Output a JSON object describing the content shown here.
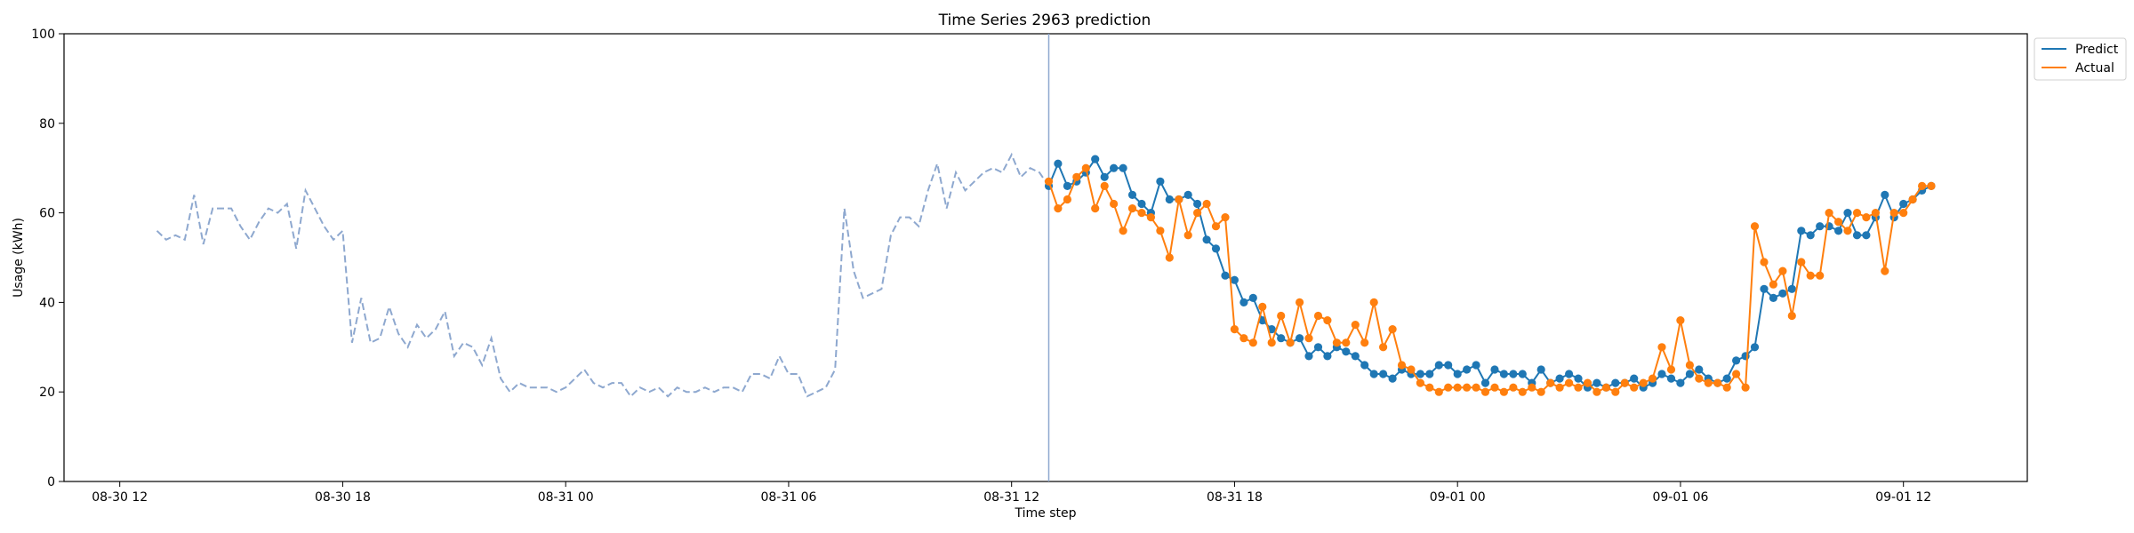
{
  "chart_data": {
    "type": "line",
    "title": "Time Series 2963 prediction",
    "xlabel": "Time step",
    "ylabel": "Usage (kWh)",
    "ylim": [
      0,
      100
    ],
    "yticks": [
      0,
      20,
      40,
      60,
      80,
      100
    ],
    "xlim": [
      "08-30 10:30",
      "09-01 15:20"
    ],
    "xtick_labels": [
      "08-30 12",
      "08-30 18",
      "08-31 00",
      "08-31 06",
      "08-31 12",
      "08-31 18",
      "09-01 00",
      "09-01 06",
      "09-01 12"
    ],
    "grid": false,
    "legend_placement": "top-right",
    "forecast_start": "08-31 13:00",
    "colors": {
      "history": "#8ea8cf",
      "predict": "#1f77b4",
      "actual": "#ff7f0e",
      "forecast_line": "#8ea8cf"
    },
    "history": {
      "x": [
        "08-30 13:00",
        "08-30 13:15",
        "08-30 13:30",
        "08-30 13:45",
        "08-30 14:00",
        "08-30 14:15",
        "08-30 14:30",
        "08-30 14:45",
        "08-30 15:00",
        "08-30 15:15",
        "08-30 15:30",
        "08-30 15:45",
        "08-30 16:00",
        "08-30 16:15",
        "08-30 16:30",
        "08-30 16:45",
        "08-30 17:00",
        "08-30 17:15",
        "08-30 17:30",
        "08-30 17:45",
        "08-30 18:00",
        "08-30 18:15",
        "08-30 18:30",
        "08-30 18:45",
        "08-30 19:00",
        "08-30 19:15",
        "08-30 19:30",
        "08-30 19:45",
        "08-30 20:00",
        "08-30 20:15",
        "08-30 20:30",
        "08-30 20:45",
        "08-30 21:00",
        "08-30 21:15",
        "08-30 21:30",
        "08-30 21:45",
        "08-30 22:00",
        "08-30 22:15",
        "08-30 22:30",
        "08-30 22:45",
        "08-30 23:00",
        "08-30 23:15",
        "08-30 23:30",
        "08-30 23:45",
        "08-31 00:00",
        "08-31 00:15",
        "08-31 00:30",
        "08-31 00:45",
        "08-31 01:00",
        "08-31 01:15",
        "08-31 01:30",
        "08-31 01:45",
        "08-31 02:00",
        "08-31 02:15",
        "08-31 02:30",
        "08-31 02:45",
        "08-31 03:00",
        "08-31 03:15",
        "08-31 03:30",
        "08-31 03:45",
        "08-31 04:00",
        "08-31 04:15",
        "08-31 04:30",
        "08-31 04:45",
        "08-31 05:00",
        "08-31 05:15",
        "08-31 05:30",
        "08-31 05:45",
        "08-31 06:00",
        "08-31 06:15",
        "08-31 06:30",
        "08-31 06:45",
        "08-31 07:00",
        "08-31 07:15",
        "08-31 07:30",
        "08-31 07:45",
        "08-31 08:00",
        "08-31 08:15",
        "08-31 08:30",
        "08-31 08:45",
        "08-31 09:00",
        "08-31 09:15",
        "08-31 09:30",
        "08-31 09:45",
        "08-31 10:00",
        "08-31 10:15",
        "08-31 10:30",
        "08-31 10:45",
        "08-31 11:00",
        "08-31 11:15",
        "08-31 11:30",
        "08-31 11:45",
        "08-31 12:00",
        "08-31 12:15",
        "08-31 12:30",
        "08-31 12:45",
        "08-31 13:00"
      ],
      "values": [
        56,
        54,
        55,
        54,
        64,
        53,
        61,
        61,
        61,
        57,
        54,
        58,
        61,
        60,
        62,
        52,
        65,
        61,
        57,
        54,
        56,
        31,
        41,
        31,
        32,
        39,
        33,
        30,
        35,
        32,
        34,
        38,
        28,
        31,
        30,
        26,
        32,
        23,
        20,
        22,
        21,
        21,
        21,
        20,
        21,
        23,
        25,
        22,
        21,
        22,
        22,
        19,
        21,
        20,
        21,
        19,
        21,
        20,
        20,
        21,
        20,
        21,
        21,
        20,
        24,
        24,
        23,
        28,
        24,
        24,
        19,
        20,
        21,
        25,
        61,
        47,
        41,
        42,
        43,
        55,
        59,
        59,
        57,
        65,
        71,
        61,
        69,
        65,
        67,
        69,
        70,
        69,
        73,
        68,
        70,
        69,
        66
      ]
    },
    "series": [
      {
        "name": "Predict",
        "x": [
          "08-31 13:00",
          "08-31 13:15",
          "08-31 13:30",
          "08-31 13:45",
          "08-31 14:00",
          "08-31 14:15",
          "08-31 14:30",
          "08-31 14:45",
          "08-31 15:00",
          "08-31 15:15",
          "08-31 15:30",
          "08-31 15:45",
          "08-31 16:00",
          "08-31 16:15",
          "08-31 16:30",
          "08-31 16:45",
          "08-31 17:00",
          "08-31 17:15",
          "08-31 17:30",
          "08-31 17:45",
          "08-31 18:00",
          "08-31 18:15",
          "08-31 18:30",
          "08-31 18:45",
          "08-31 19:00",
          "08-31 19:15",
          "08-31 19:30",
          "08-31 19:45",
          "08-31 20:00",
          "08-31 20:15",
          "08-31 20:30",
          "08-31 20:45",
          "08-31 21:00",
          "08-31 21:15",
          "08-31 21:30",
          "08-31 21:45",
          "08-31 22:00",
          "08-31 22:15",
          "08-31 22:30",
          "08-31 22:45",
          "08-31 23:00",
          "08-31 23:15",
          "08-31 23:30",
          "08-31 23:45",
          "09-01 00:00",
          "09-01 00:15",
          "09-01 00:30",
          "09-01 00:45",
          "09-01 01:00",
          "09-01 01:15",
          "09-01 01:30",
          "09-01 01:45",
          "09-01 02:00",
          "09-01 02:15",
          "09-01 02:30",
          "09-01 02:45",
          "09-01 03:00",
          "09-01 03:15",
          "09-01 03:30",
          "09-01 03:45",
          "09-01 04:00",
          "09-01 04:15",
          "09-01 04:30",
          "09-01 04:45",
          "09-01 05:00",
          "09-01 05:15",
          "09-01 05:30",
          "09-01 05:45",
          "09-01 06:00",
          "09-01 06:15",
          "09-01 06:30",
          "09-01 06:45",
          "09-01 07:00",
          "09-01 07:15",
          "09-01 07:30",
          "09-01 07:45",
          "09-01 08:00",
          "09-01 08:15",
          "09-01 08:30",
          "09-01 08:45",
          "09-01 09:00",
          "09-01 09:15",
          "09-01 09:30",
          "09-01 09:45",
          "09-01 10:00",
          "09-01 10:15",
          "09-01 10:30",
          "09-01 10:45",
          "09-01 11:00",
          "09-01 11:15",
          "09-01 11:30",
          "09-01 11:45",
          "09-01 12:00",
          "09-01 12:15",
          "09-01 12:30",
          "09-01 12:45"
        ],
        "values": [
          66,
          71,
          66,
          67,
          69,
          72,
          68,
          70,
          70,
          64,
          62,
          60,
          67,
          63,
          63,
          64,
          62,
          54,
          52,
          46,
          45,
          40,
          41,
          36,
          34,
          32,
          31,
          32,
          28,
          30,
          28,
          30,
          29,
          28,
          26,
          24,
          24,
          23,
          25,
          24,
          24,
          24,
          26,
          26,
          24,
          25,
          26,
          22,
          25,
          24,
          24,
          24,
          22,
          25,
          22,
          23,
          24,
          23,
          21,
          22,
          21,
          22,
          22,
          23,
          21,
          22,
          24,
          23,
          22,
          24,
          25,
          23,
          22,
          23,
          27,
          28,
          30,
          43,
          41,
          42,
          43,
          56,
          55,
          57,
          57,
          56,
          60,
          55,
          55,
          59,
          64,
          59,
          62,
          63,
          65,
          66
        ]
      },
      {
        "name": "Actual",
        "x": [
          "08-31 13:00",
          "08-31 13:15",
          "08-31 13:30",
          "08-31 13:45",
          "08-31 14:00",
          "08-31 14:15",
          "08-31 14:30",
          "08-31 14:45",
          "08-31 15:00",
          "08-31 15:15",
          "08-31 15:30",
          "08-31 15:45",
          "08-31 16:00",
          "08-31 16:15",
          "08-31 16:30",
          "08-31 16:45",
          "08-31 17:00",
          "08-31 17:15",
          "08-31 17:30",
          "08-31 17:45",
          "08-31 18:00",
          "08-31 18:15",
          "08-31 18:30",
          "08-31 18:45",
          "08-31 19:00",
          "08-31 19:15",
          "08-31 19:30",
          "08-31 19:45",
          "08-31 20:00",
          "08-31 20:15",
          "08-31 20:30",
          "08-31 20:45",
          "08-31 21:00",
          "08-31 21:15",
          "08-31 21:30",
          "08-31 21:45",
          "08-31 22:00",
          "08-31 22:15",
          "08-31 22:30",
          "08-31 22:45",
          "08-31 23:00",
          "08-31 23:15",
          "08-31 23:30",
          "08-31 23:45",
          "09-01 00:00",
          "09-01 00:15",
          "09-01 00:30",
          "09-01 00:45",
          "09-01 01:00",
          "09-01 01:15",
          "09-01 01:30",
          "09-01 01:45",
          "09-01 02:00",
          "09-01 02:15",
          "09-01 02:30",
          "09-01 02:45",
          "09-01 03:00",
          "09-01 03:15",
          "09-01 03:30",
          "09-01 03:45",
          "09-01 04:00",
          "09-01 04:15",
          "09-01 04:30",
          "09-01 04:45",
          "09-01 05:00",
          "09-01 05:15",
          "09-01 05:30",
          "09-01 05:45",
          "09-01 06:00",
          "09-01 06:15",
          "09-01 06:30",
          "09-01 06:45",
          "09-01 07:00",
          "09-01 07:15",
          "09-01 07:30",
          "09-01 07:45",
          "09-01 08:00",
          "09-01 08:15",
          "09-01 08:30",
          "09-01 08:45",
          "09-01 09:00",
          "09-01 09:15",
          "09-01 09:30",
          "09-01 09:45",
          "09-01 10:00",
          "09-01 10:15",
          "09-01 10:30",
          "09-01 10:45",
          "09-01 11:00",
          "09-01 11:15",
          "09-01 11:30",
          "09-01 11:45",
          "09-01 12:00",
          "09-01 12:15",
          "09-01 12:30",
          "09-01 12:45"
        ],
        "values": [
          67,
          61,
          63,
          68,
          70,
          61,
          66,
          62,
          56,
          61,
          60,
          59,
          56,
          50,
          63,
          55,
          60,
          62,
          57,
          59,
          34,
          32,
          31,
          39,
          31,
          37,
          31,
          40,
          32,
          37,
          36,
          31,
          31,
          35,
          31,
          40,
          30,
          34,
          26,
          25,
          22,
          21,
          20,
          21,
          21,
          21,
          21,
          20,
          21,
          20,
          21,
          20,
          21,
          20,
          22,
          21,
          22,
          21,
          22,
          20,
          21,
          20,
          22,
          21,
          22,
          23,
          30,
          25,
          36,
          26,
          23,
          22,
          22,
          21,
          24,
          21,
          57,
          49,
          44,
          47,
          37,
          49,
          46,
          46,
          60,
          58,
          56,
          60,
          59,
          60,
          47,
          60,
          60,
          63,
          66,
          66
        ]
      }
    ]
  }
}
